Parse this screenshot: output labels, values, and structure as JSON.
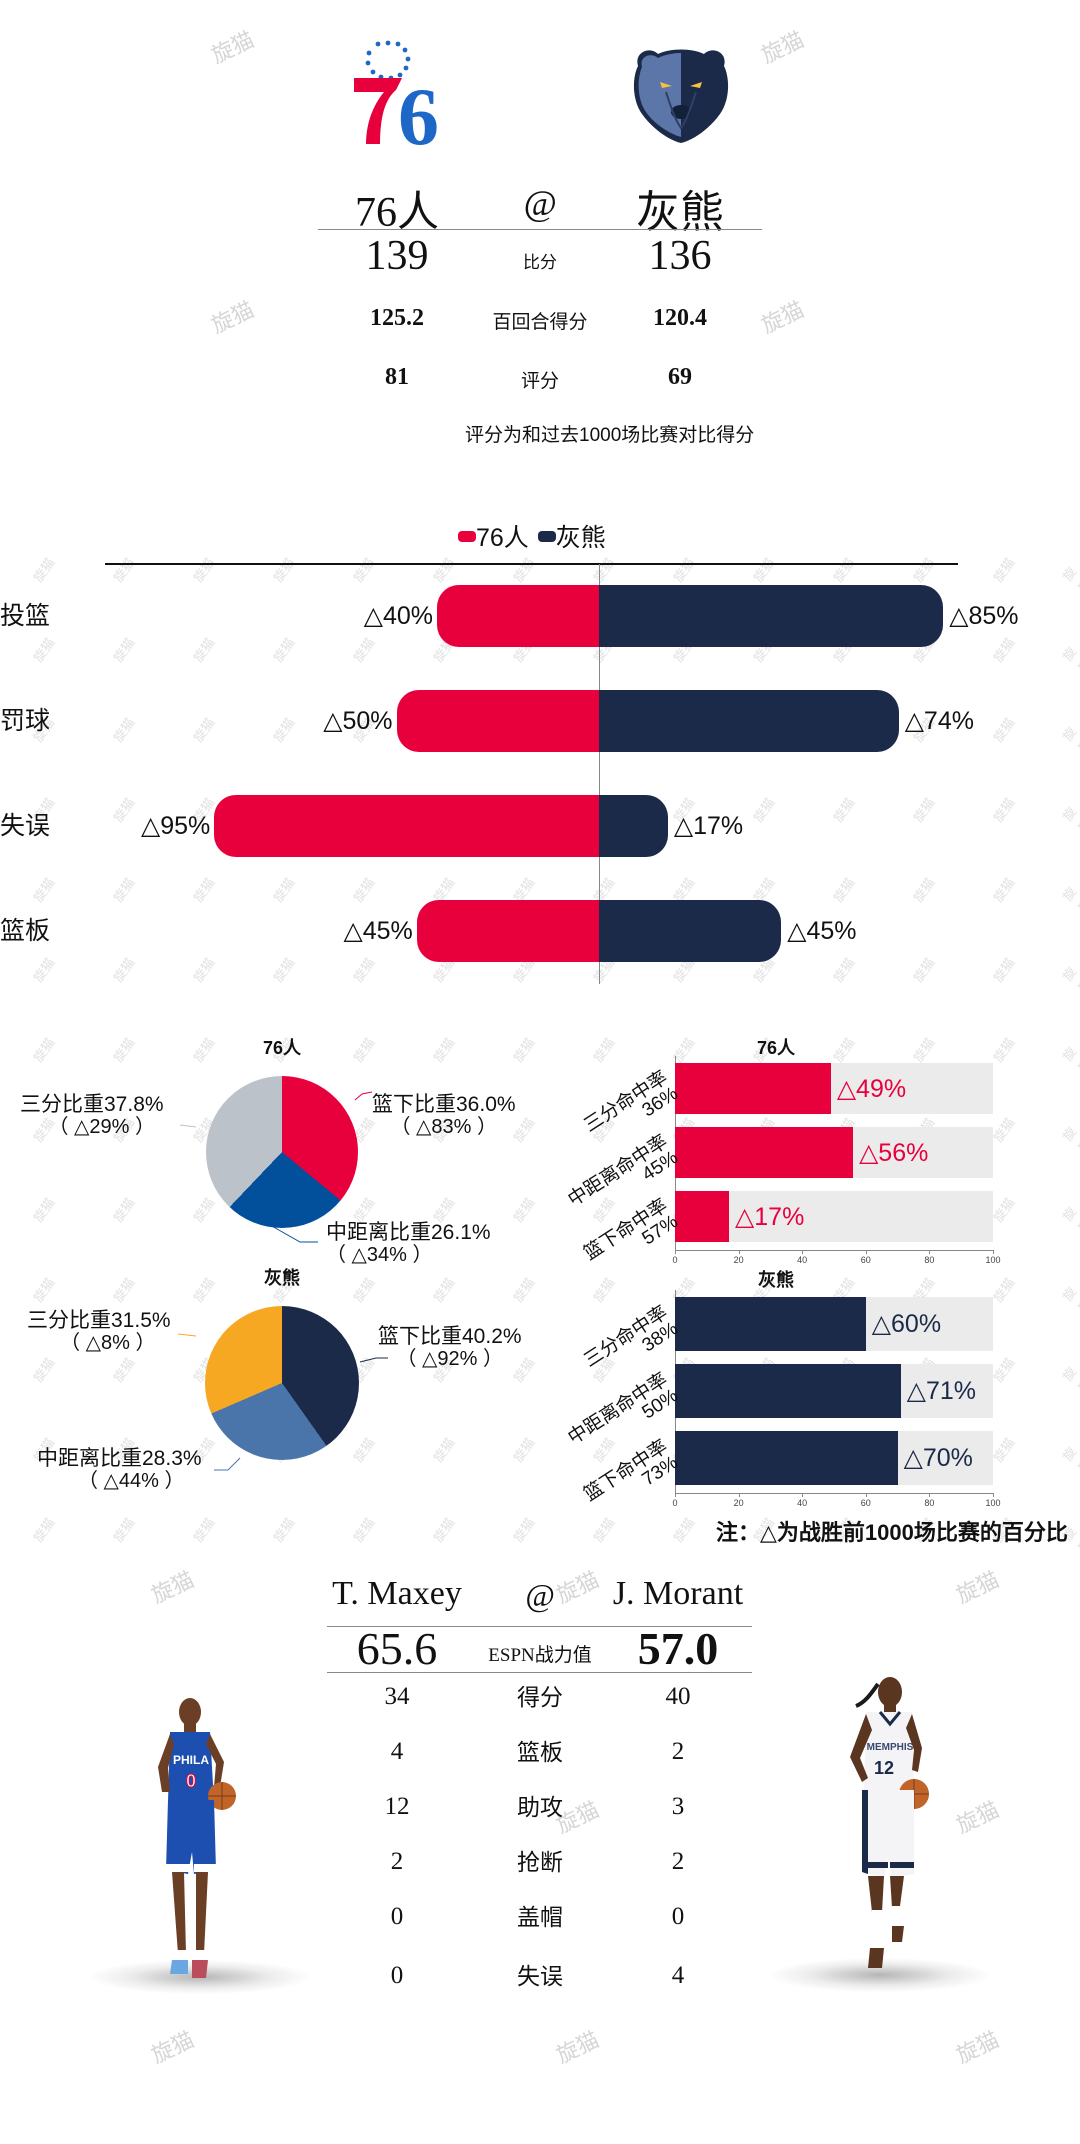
{
  "header": {
    "home_team": "76人",
    "away_team": "灰熊",
    "at": "@",
    "rows": [
      {
        "label": "比分",
        "home": "139",
        "away": "136"
      },
      {
        "label": "百回合得分",
        "home": "125.2",
        "away": "120.4"
      },
      {
        "label": "评分",
        "home": "81",
        "away": "69"
      }
    ],
    "note": "评分为和过去1000场比赛对比得分"
  },
  "colors": {
    "sixers_red": "#E8003D",
    "grizzlies_navy": "#1B2A49",
    "sixers_blue": "#02509C",
    "sixers_gray": "#BBC2CA",
    "grizzlies_gold": "#F7A823",
    "grizzlies_steel": "#4A75AA",
    "track_gray": "#EBEBEB"
  },
  "chart_data": [
    {
      "type": "bar",
      "subtype": "diverging-horizontal",
      "title": "",
      "legend": [
        "76人",
        "灰熊"
      ],
      "legend_position": "top",
      "categories": [
        "投篮",
        "罚球",
        "失误",
        "篮板"
      ],
      "series": [
        {
          "name": "76人",
          "values": [
            40,
            50,
            95,
            45
          ],
          "labels": [
            "△40%",
            "△50%",
            "△95%",
            "△45%"
          ]
        },
        {
          "name": "灰熊",
          "values": [
            85,
            74,
            17,
            45
          ],
          "labels": [
            "△85%",
            "△74%",
            "△17%",
            "△45%"
          ]
        }
      ],
      "xlim": [
        -100,
        100
      ],
      "grid": false
    },
    {
      "type": "pie",
      "title": "76人",
      "slices": [
        {
          "label": "篮下比重36.0%",
          "value": 36.0,
          "sub": "（ △83% ）"
        },
        {
          "label": "中距离比重26.1%",
          "value": 26.1,
          "sub": "（ △34% ）"
        },
        {
          "label": "三分比重37.8%",
          "value": 37.8,
          "sub": "（ △29% ）"
        }
      ]
    },
    {
      "type": "pie",
      "title": "灰熊",
      "slices": [
        {
          "label": "篮下比重40.2%",
          "value": 40.2,
          "sub": "（ △92% ）"
        },
        {
          "label": "中距离比重28.3%",
          "value": 28.3,
          "sub": "（ △44% ）"
        },
        {
          "label": "三分比重31.5%",
          "value": 31.5,
          "sub": "（ △8% ）"
        }
      ]
    },
    {
      "type": "bar",
      "subtype": "horizontal",
      "title": "76人",
      "categories": [
        "三分命中率 36%",
        "中距离命中率 45%",
        "篮下命中率 57%"
      ],
      "values": [
        49,
        56,
        17
      ],
      "labels": [
        "△49%",
        "△56%",
        "△17%"
      ],
      "xlim": [
        0,
        100
      ],
      "xticks": [
        0,
        20,
        40,
        60,
        80,
        100
      ]
    },
    {
      "type": "bar",
      "subtype": "horizontal",
      "title": "灰熊",
      "categories": [
        "三分命中率 38%",
        "中距离命中率 50%",
        "篮下命中率 73%"
      ],
      "values": [
        60,
        71,
        70
      ],
      "labels": [
        "△60%",
        "△71%",
        "△70%"
      ],
      "xlim": [
        0,
        100
      ],
      "xticks": [
        0,
        20,
        40,
        60,
        80,
        100
      ]
    }
  ],
  "diverging": {
    "legend": {
      "home": "76人",
      "away": "灰熊"
    },
    "rows": [
      {
        "label": "投篮",
        "home": 40,
        "away": 85,
        "home_text": "△40%",
        "away_text": "△85%"
      },
      {
        "label": "罚球",
        "home": 50,
        "away": 74,
        "home_text": "△50%",
        "away_text": "△74%"
      },
      {
        "label": "失误",
        "home": 95,
        "away": 17,
        "home_text": "△95%",
        "away_text": "△17%"
      },
      {
        "label": "篮板",
        "home": 45,
        "away": 45,
        "home_text": "△45%",
        "away_text": "△45%"
      }
    ]
  },
  "pies": {
    "home": {
      "title": "76人",
      "inside": {
        "name": "篮下比重36.0%",
        "sub": "（ △83% ）"
      },
      "mid": {
        "name": "中距离比重26.1%",
        "sub": "（ △34% ）"
      },
      "three": {
        "name": "三分比重37.8%",
        "sub": "（ △29% ）"
      }
    },
    "away": {
      "title": "灰熊",
      "inside": {
        "name": "篮下比重40.2%",
        "sub": "（ △92% ）"
      },
      "mid": {
        "name": "中距离比重28.3%",
        "sub": "（ △44% ）"
      },
      "three": {
        "name": "三分比重31.5%",
        "sub": "（ △8% ）"
      }
    }
  },
  "shooting": {
    "home": {
      "title": "76人",
      "rows": [
        {
          "cat1": "三分命中率",
          "cat2": "36%",
          "value": 49,
          "text": "△49%"
        },
        {
          "cat1": "中距离命中率",
          "cat2": "45%",
          "value": 56,
          "text": "△56%"
        },
        {
          "cat1": "篮下命中率",
          "cat2": "57%",
          "value": 17,
          "text": "△17%"
        }
      ]
    },
    "away": {
      "title": "灰熊",
      "rows": [
        {
          "cat1": "三分命中率",
          "cat2": "38%",
          "value": 60,
          "text": "△60%"
        },
        {
          "cat1": "中距离命中率",
          "cat2": "50%",
          "value": 71,
          "text": "△71%"
        },
        {
          "cat1": "篮下命中率",
          "cat2": "73%",
          "value": 70,
          "text": "△70%"
        }
      ]
    },
    "ticks": [
      "0",
      "20",
      "40",
      "60",
      "80",
      "100"
    ],
    "footnote": "注：△为战胜前1000场比赛的百分比"
  },
  "players": {
    "home_name": "T. Maxey",
    "away_name": "J. Morant",
    "at": "@",
    "rating_label": "ESPN战力值",
    "home_rating": "65.6",
    "away_rating": "57.0",
    "rows": [
      {
        "label": "得分",
        "home": "34",
        "away": "40"
      },
      {
        "label": "篮板",
        "home": "4",
        "away": "2"
      },
      {
        "label": "助攻",
        "home": "12",
        "away": "3"
      },
      {
        "label": "抢断",
        "home": "2",
        "away": "2"
      },
      {
        "label": "盖帽",
        "home": "0",
        "away": "0"
      },
      {
        "label": "失误",
        "home": "0",
        "away": "4"
      }
    ],
    "home_jersey": {
      "team": "PHILA",
      "number": "0"
    },
    "away_jersey": {
      "team": "MEMPHIS",
      "number": "12"
    }
  },
  "watermark": "旋猫"
}
